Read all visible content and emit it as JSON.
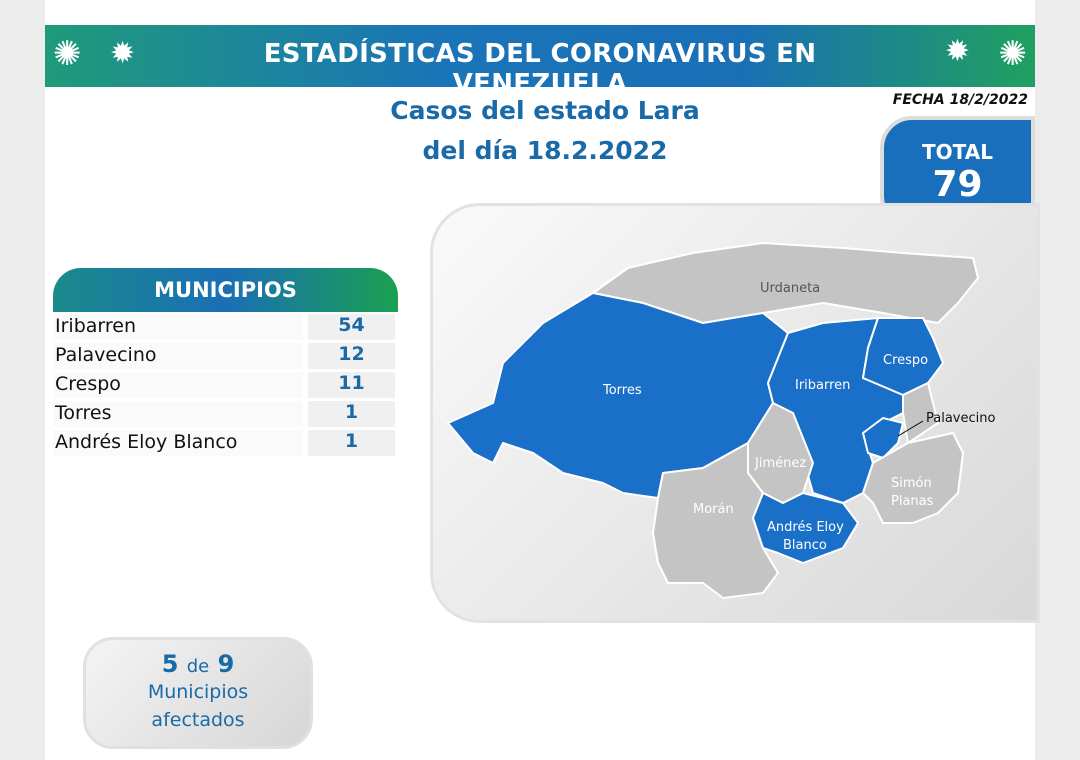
{
  "header": {
    "title": "ESTADÍSTICAS DEL CORONAVIRUS EN VENEZUELA",
    "fecha": "FECHA 18/2/2022"
  },
  "subtitle": {
    "line1": "Casos del estado Lara",
    "line2": "del día 18.2.2022"
  },
  "total": {
    "label": "TOTAL",
    "value": "79"
  },
  "municipios": {
    "header": "MUNICIPIOS",
    "rows": [
      {
        "name": "Iribarren",
        "cases": "54"
      },
      {
        "name": "Palavecino",
        "cases": "12"
      },
      {
        "name": "Crespo",
        "cases": "11"
      },
      {
        "name": "Torres",
        "cases": "1"
      },
      {
        "name": "Andrés Eloy Blanco",
        "cases": "1"
      }
    ]
  },
  "map": {
    "affected_color": "#1a6fc8",
    "unaffected_color": "#c4c4c4",
    "labels": {
      "urdaneta": "Urdaneta",
      "torres": "Torres",
      "iribarren": "Iribarren",
      "crespo": "Crespo",
      "palavecino": "Palavecino",
      "jimenez": "Jiménez",
      "moran": "Morán",
      "aeb1": "Andrés Eloy",
      "aeb2": "Blanco",
      "simon1": "Simón",
      "simon2": "Planas"
    }
  },
  "summary": {
    "affected": "5",
    "de": "de",
    "total": "9",
    "line1": "Municipios",
    "line2": "afectados"
  }
}
